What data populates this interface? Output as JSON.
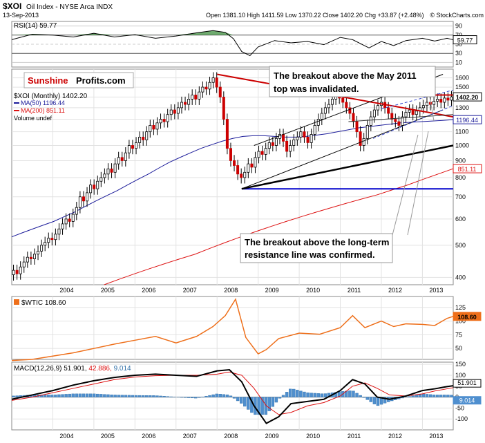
{
  "header": {
    "ticker": "$XOI",
    "name": "Oil Index - NYSE Arca INDX",
    "date": "13-Sep-2013",
    "quote": "Open 1381.10  High 1411.59  Low 1370.22  Close 1402.20  Chg +33.87 (+2.48%)",
    "quote_arrow": "▲",
    "copyright": "© StockCharts.com"
  },
  "logo": {
    "part1": "Sunshine",
    "part2": "Profits.com"
  },
  "annotations": {
    "top_line1": "The breakout above the May 2011",
    "top_line2": "top was invalidated.",
    "bottom_line1": "The breakout above the long-term",
    "bottom_line2": "resistance line was confirmed."
  },
  "colors": {
    "price_up": "#000000",
    "price_down": "#cc0000",
    "ma50": "#1a1a99",
    "ma200": "#dd1111",
    "wtic": "#ee6f1a",
    "macd_line": "#000000",
    "macd_signal": "#dd1111",
    "macd_hist": "#4f8fcf",
    "rsi_fill": "#3f8f3f",
    "support": "#0000cc",
    "resistance": "#cc0000"
  },
  "chart_data": [
    {
      "type": "line",
      "panel": "rsi",
      "legend": "RSI(14) 59.77",
      "last_value": "59.77",
      "y_ticks": [
        "90",
        "70",
        "50",
        "30",
        "10"
      ],
      "ylim": [
        0,
        100
      ],
      "x": [
        2003.0,
        2003.5,
        2004.0,
        2004.5,
        2005.0,
        2005.5,
        2006.0,
        2006.5,
        2007.0,
        2007.5,
        2007.9,
        2008.2,
        2008.4,
        2008.6,
        2008.8,
        2009.0,
        2009.4,
        2009.8,
        2010.2,
        2010.6,
        2011.0,
        2011.3,
        2011.7,
        2012.0,
        2012.3,
        2012.6,
        2013.0,
        2013.3,
        2013.6,
        2013.75
      ],
      "values": [
        60,
        72,
        70,
        66,
        74,
        66,
        71,
        63,
        68,
        75,
        80,
        76,
        62,
        34,
        25,
        44,
        58,
        53,
        56,
        49,
        65,
        60,
        42,
        56,
        47,
        58,
        63,
        57,
        63,
        59.77
      ]
    },
    {
      "type": "candlestick",
      "panel": "price",
      "legend": [
        "$XOI (Monthly) 1402.20",
        "MA(50) 1196.44",
        "MA(200) 851.11",
        "Volume undef"
      ],
      "y_scale": "log",
      "ylim": [
        380,
        1700
      ],
      "y_ticks": [
        1600,
        1500,
        1400,
        1300,
        1200,
        1100,
        1000,
        900,
        800,
        700,
        600,
        500,
        400
      ],
      "x_ticks": [
        "2004",
        "2005",
        "2006",
        "2007",
        "2008",
        "2009",
        "2010",
        "2011",
        "2012",
        "2013"
      ],
      "price_labels": {
        "close": "1402.20",
        "ma50": "1196.44",
        "ma200": "851.11"
      },
      "close": [
        420,
        410,
        430,
        445,
        460,
        455,
        470,
        480,
        500,
        510,
        525,
        520,
        540,
        560,
        580,
        600,
        590,
        620,
        650,
        700,
        680,
        720,
        760,
        740,
        780,
        800,
        820,
        850,
        830,
        880,
        920,
        900,
        950,
        1000,
        980,
        1020,
        1060,
        1040,
        1100,
        1150,
        1120,
        1170,
        1200,
        1180,
        1240,
        1280,
        1250,
        1300,
        1350,
        1330,
        1380,
        1420,
        1380,
        1450,
        1500,
        1480,
        1550,
        1600,
        1500,
        1400,
        1200,
        980,
        900,
        870,
        820,
        800,
        830,
        880,
        860,
        920,
        960,
        940,
        980,
        1020,
        1000,
        1050,
        1080,
        1030,
        960,
        1000,
        1040,
        1060,
        1100,
        1060,
        1020,
        1080,
        1150,
        1200,
        1250,
        1300,
        1330,
        1380,
        1420,
        1390,
        1350,
        1300,
        1250,
        1180,
        1100,
        1000,
        1050,
        1150,
        1220,
        1280,
        1320,
        1350,
        1300,
        1250,
        1200,
        1180,
        1150,
        1220,
        1260,
        1280,
        1240,
        1270,
        1300,
        1320,
        1350,
        1330,
        1360,
        1380,
        1350,
        1390,
        1370,
        1402.2
      ],
      "ma50": [
        530,
        545,
        560,
        575,
        590,
        610,
        630,
        655,
        680,
        705,
        730,
        760,
        790,
        820,
        855,
        890,
        920,
        950,
        980,
        1005,
        1030,
        1050,
        1065,
        1070,
        1070,
        1065,
        1060,
        1060,
        1065,
        1075,
        1085,
        1100,
        1115,
        1130,
        1140,
        1150,
        1160,
        1170,
        1175,
        1180,
        1185,
        1190,
        1196.44
      ],
      "ma200": [
        380,
        395,
        410,
        425,
        440,
        455,
        470,
        490,
        510,
        530,
        550,
        570,
        590,
        610,
        630,
        650,
        670,
        690,
        710,
        735,
        760,
        790,
        820,
        851.11
      ],
      "support_level": 740
    },
    {
      "type": "line",
      "panel": "wtic",
      "legend": "$WTIC 108.60",
      "last_value": "108.60",
      "y_ticks": [
        "125",
        "100",
        "75",
        "50"
      ],
      "ylim": [
        30,
        145
      ],
      "x": [
        2003.0,
        2003.5,
        2004.0,
        2004.5,
        2005.0,
        2005.5,
        2006.0,
        2006.5,
        2007.0,
        2007.5,
        2007.9,
        2008.2,
        2008.45,
        2008.7,
        2009.0,
        2009.2,
        2009.5,
        2010.0,
        2010.5,
        2011.0,
        2011.3,
        2011.6,
        2012.0,
        2012.3,
        2012.6,
        2013.0,
        2013.3,
        2013.6,
        2013.75
      ],
      "values": [
        28,
        30,
        36,
        42,
        50,
        58,
        65,
        72,
        60,
        72,
        90,
        110,
        140,
        70,
        40,
        48,
        68,
        78,
        76,
        88,
        110,
        88,
        100,
        90,
        95,
        94,
        92,
        105,
        108.6
      ]
    },
    {
      "type": "line",
      "panel": "macd",
      "legend": "MACD(12,26,9) 51.901, 42.886, 9.014",
      "macd_value": "51.901",
      "signal_value": "42.886",
      "hist_value": "9.014",
      "y_ticks": [
        "150",
        "100",
        "50",
        "0",
        "-50",
        "-100"
      ],
      "ylim": [
        -150,
        160
      ],
      "x_ticks": [
        "2004",
        "2005",
        "2006",
        "2007",
        "2008",
        "2009",
        "2010",
        "2011",
        "2012",
        "2013"
      ],
      "x": [
        2003.0,
        2003.5,
        2004.0,
        2004.5,
        2005.0,
        2005.5,
        2006.0,
        2006.5,
        2007.0,
        2007.5,
        2008.0,
        2008.3,
        2008.6,
        2008.9,
        2009.2,
        2009.5,
        2009.8,
        2010.2,
        2010.6,
        2011.0,
        2011.3,
        2011.6,
        2011.9,
        2012.2,
        2012.6,
        2013.0,
        2013.3,
        2013.6,
        2013.75
      ],
      "macd": [
        -10,
        10,
        30,
        55,
        75,
        90,
        100,
        105,
        100,
        95,
        120,
        125,
        70,
        -40,
        -120,
        -90,
        -30,
        -20,
        -10,
        30,
        80,
        60,
        0,
        -10,
        5,
        30,
        38,
        48,
        51.901
      ],
      "signal": [
        -15,
        0,
        20,
        40,
        60,
        80,
        92,
        98,
        100,
        100,
        105,
        115,
        100,
        40,
        -40,
        -80,
        -70,
        -40,
        -25,
        5,
        50,
        65,
        40,
        10,
        5,
        15,
        28,
        38,
        42.886
      ]
    }
  ]
}
